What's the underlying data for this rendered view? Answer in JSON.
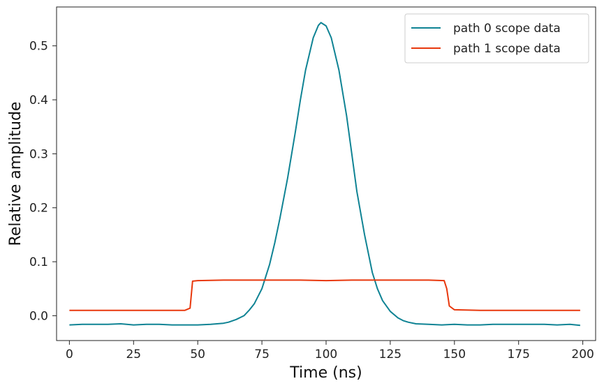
{
  "chart_data": {
    "type": "line",
    "xlabel": "Time (ns)",
    "ylabel": "Relative amplitude",
    "xlim": [
      -5,
      205
    ],
    "ylim": [
      -0.046,
      0.572
    ],
    "x_ticks": [
      0,
      25,
      50,
      75,
      100,
      125,
      150,
      175,
      200
    ],
    "y_ticks": [
      0.0,
      0.1,
      0.2,
      0.3,
      0.4,
      0.5
    ],
    "x_tick_labels": [
      "0",
      "25",
      "50",
      "75",
      "100",
      "125",
      "150",
      "175",
      "200"
    ],
    "y_tick_labels": [
      "0.0",
      "0.1",
      "0.2",
      "0.3",
      "0.4",
      "0.5"
    ],
    "grid": false,
    "legend_position": "top-right",
    "series": [
      {
        "name": "path 0 scope data",
        "color": "#0f8394",
        "x": [
          0,
          5,
          10,
          15,
          20,
          25,
          30,
          35,
          40,
          45,
          50,
          55,
          60,
          62,
          65,
          68,
          70,
          72,
          75,
          78,
          80,
          82,
          85,
          88,
          90,
          92,
          95,
          97,
          98,
          100,
          102,
          105,
          108,
          110,
          112,
          115,
          118,
          120,
          122,
          125,
          128,
          130,
          132,
          135,
          140,
          145,
          150,
          155,
          160,
          165,
          170,
          175,
          180,
          185,
          190,
          195,
          199
        ],
        "y": [
          -0.017,
          -0.016,
          -0.016,
          -0.016,
          -0.015,
          -0.017,
          -0.016,
          -0.016,
          -0.017,
          -0.017,
          -0.017,
          -0.016,
          -0.014,
          -0.012,
          -0.007,
          0.0,
          0.01,
          0.022,
          0.05,
          0.095,
          0.135,
          0.18,
          0.255,
          0.34,
          0.4,
          0.455,
          0.515,
          0.538,
          0.543,
          0.537,
          0.515,
          0.455,
          0.37,
          0.3,
          0.23,
          0.15,
          0.08,
          0.05,
          0.028,
          0.008,
          -0.004,
          -0.009,
          -0.012,
          -0.015,
          -0.016,
          -0.017,
          -0.016,
          -0.017,
          -0.017,
          -0.016,
          -0.016,
          -0.016,
          -0.016,
          -0.016,
          -0.017,
          -0.016,
          -0.018
        ]
      },
      {
        "name": "path 1 scope data",
        "color": "#e8380d",
        "x": [
          0,
          10,
          20,
          30,
          40,
          45,
          47,
          48,
          50,
          60,
          70,
          80,
          90,
          100,
          110,
          120,
          130,
          140,
          146,
          147,
          148,
          150,
          160,
          170,
          180,
          190,
          199
        ],
        "y": [
          0.01,
          0.01,
          0.01,
          0.01,
          0.01,
          0.01,
          0.014,
          0.064,
          0.065,
          0.066,
          0.066,
          0.066,
          0.066,
          0.065,
          0.066,
          0.066,
          0.066,
          0.066,
          0.065,
          0.05,
          0.018,
          0.011,
          0.01,
          0.01,
          0.01,
          0.01,
          0.01
        ]
      }
    ]
  }
}
